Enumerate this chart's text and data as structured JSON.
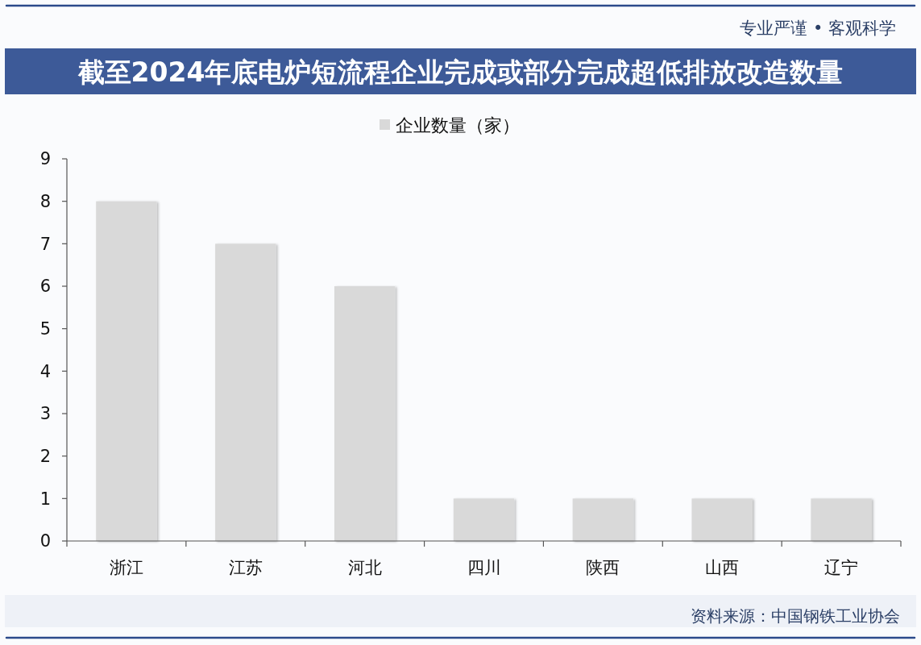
{
  "chart_data": {
    "type": "bar",
    "title": "截至2024年底电炉短流程企业完成或部分完成超低排放改造数量",
    "categories": [
      "浙江",
      "江苏",
      "河北",
      "四川",
      "陕西",
      "山西",
      "辽宁"
    ],
    "series": [
      {
        "name": "企业数量（家）",
        "color": "#d9d9d9",
        "values": [
          8,
          7,
          6,
          1,
          1,
          1,
          1
        ]
      }
    ],
    "ylim": [
      0,
      9
    ],
    "yticks": [
      0,
      1,
      2,
      3,
      4,
      5,
      6,
      7,
      8,
      9
    ],
    "legend": "top",
    "annotations": [
      "专业严谨 • 客观科学",
      "资料来源：中国钢铁工业协会"
    ]
  }
}
